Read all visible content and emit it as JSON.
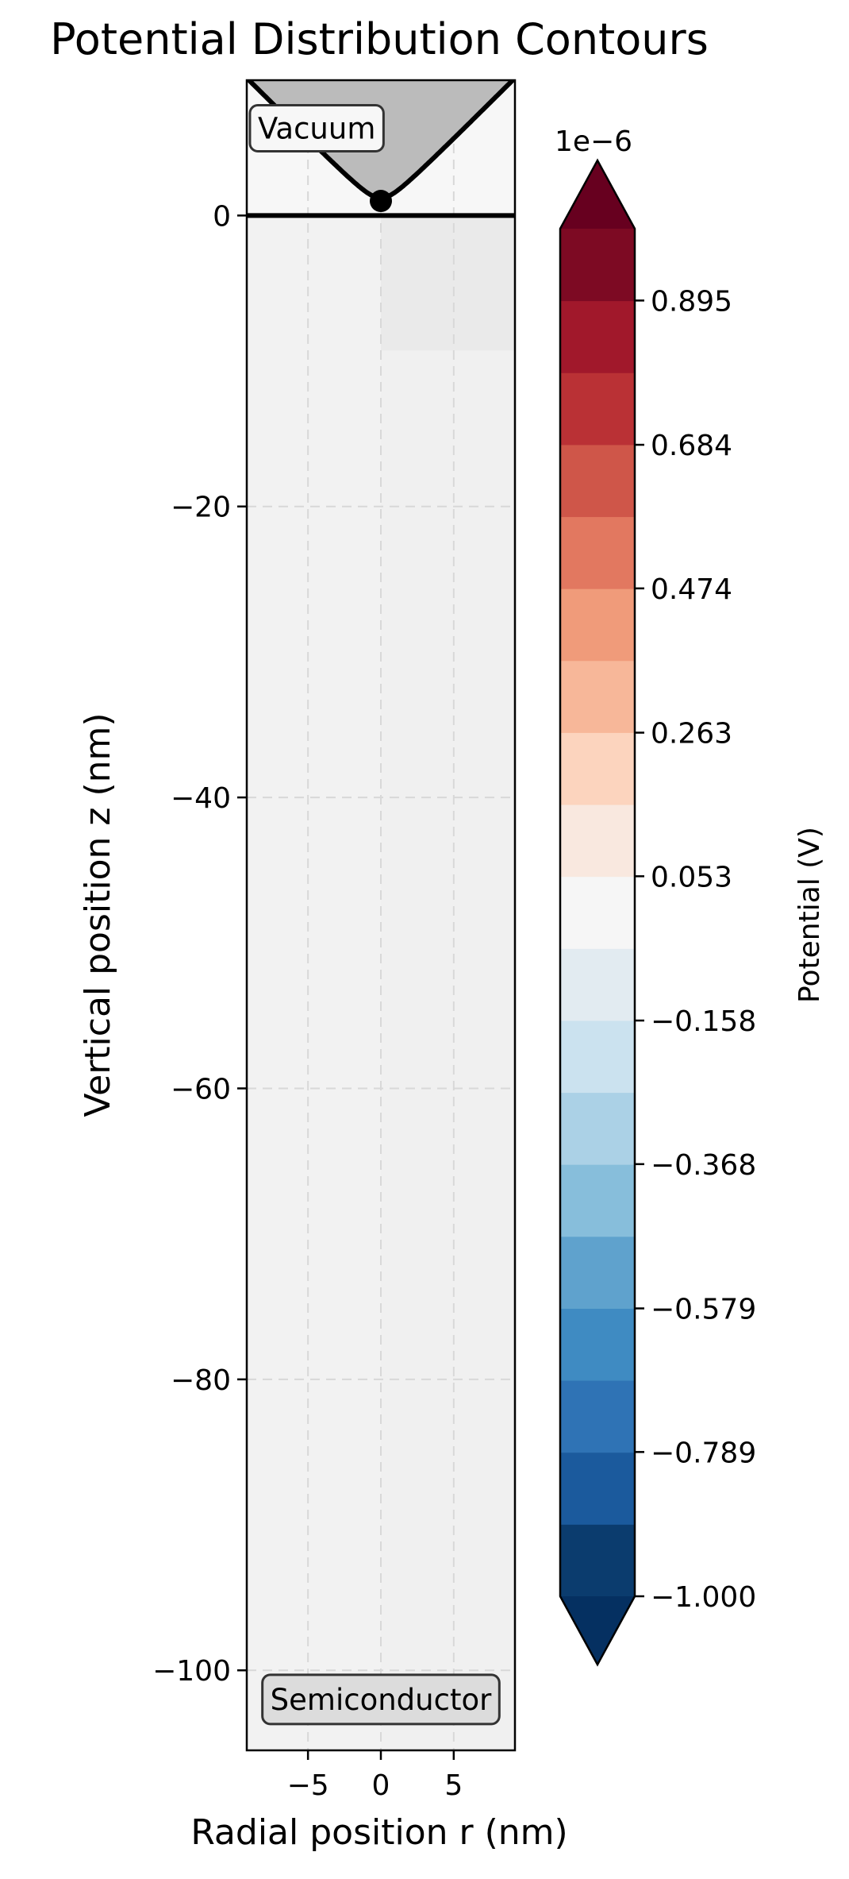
{
  "chart_data": {
    "type": "heatmap",
    "title": "Potential Distribution Contours",
    "xlabel": "Radial position r (nm)",
    "ylabel": "Vertical position z (nm)",
    "xlim": [
      -9.2,
      9.2
    ],
    "ylim": [
      -105.5,
      9.3
    ],
    "x_ticks": [
      {
        "value": -5,
        "label": "−5"
      },
      {
        "value": 0,
        "label": "0"
      },
      {
        "value": 5,
        "label": "5"
      }
    ],
    "y_ticks": [
      {
        "value": 0,
        "label": "0"
      },
      {
        "value": -20,
        "label": "−20"
      },
      {
        "value": -40,
        "label": "−40"
      },
      {
        "value": -60,
        "label": "−60"
      },
      {
        "value": -80,
        "label": "−80"
      },
      {
        "value": -100,
        "label": "−100"
      }
    ],
    "grid": true,
    "regions": [
      {
        "label": "Vacuum",
        "r": -4.4,
        "z": 6.0
      },
      {
        "label": "Semiconductor",
        "r": 0,
        "z": -102
      }
    ],
    "surface_z": 0,
    "tip_apex": {
      "r": 0,
      "z": 1
    },
    "tip_min_z": 1.2,
    "tip_slope": 1.0,
    "vacuum_color": "#f7f7f7",
    "tip_fill": "#bbbbbb",
    "field_cells": [
      {
        "r0": -9.2,
        "r1": 0,
        "z0": -105.5,
        "z1": 0,
        "color": "#f2f2f2"
      },
      {
        "r0": 0,
        "r1": 9.2,
        "z0": -9.3,
        "z1": 0,
        "color": "#eaeaea"
      },
      {
        "r0": 0,
        "r1": 9.2,
        "z0": -105.5,
        "z1": -9.3,
        "color": "#f0f0f0"
      }
    ],
    "colorbar": {
      "label": "Potential (V)",
      "offset_text": "1e−6",
      "vmin": -1.0,
      "vmax": 1.0,
      "extend": "both",
      "levels": 19,
      "colors": [
        "#0b3c6e",
        "#1b5a9d",
        "#2f73b5",
        "#3f8bc2",
        "#5fa2cd",
        "#87bedb",
        "#abd1e6",
        "#cbe2ef",
        "#e2ebf1",
        "#f6f6f6",
        "#f9e8df",
        "#fcd4be",
        "#f7b799",
        "#f09b7a",
        "#e27860",
        "#cf5649",
        "#ba3135",
        "#a1182b",
        "#7d0a23"
      ],
      "under_color": "#053061",
      "over_color": "#67001f",
      "ticks": [
        {
          "value": -1.0,
          "label": "−1.000"
        },
        {
          "value": -0.789,
          "label": "−0.789"
        },
        {
          "value": -0.579,
          "label": "−0.579"
        },
        {
          "value": -0.368,
          "label": "−0.368"
        },
        {
          "value": -0.158,
          "label": "−0.158"
        },
        {
          "value": 0.053,
          "label": "0.053"
        },
        {
          "value": 0.263,
          "label": "0.263"
        },
        {
          "value": 0.474,
          "label": "0.474"
        },
        {
          "value": 0.684,
          "label": "0.684"
        },
        {
          "value": 0.895,
          "label": "0.895"
        }
      ]
    }
  }
}
